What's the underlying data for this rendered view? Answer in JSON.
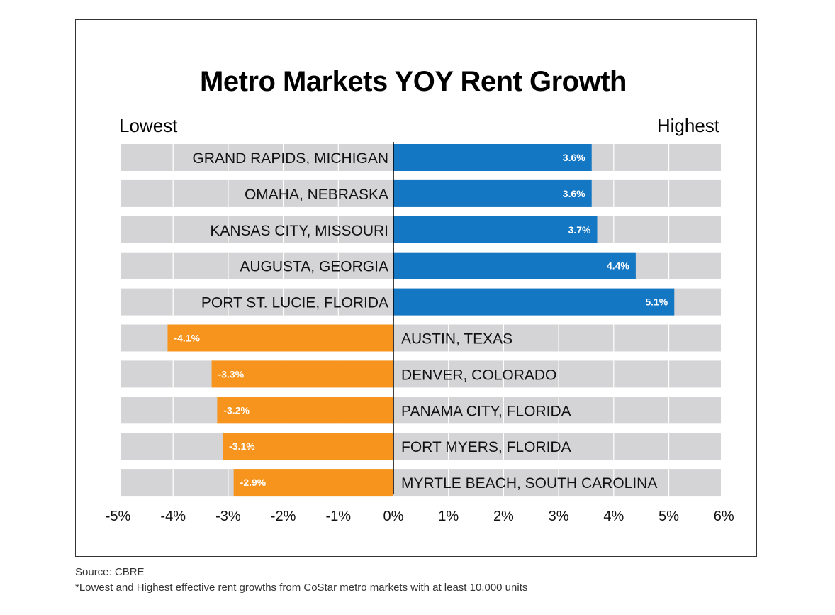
{
  "chart_data": {
    "type": "bar",
    "orientation": "horizontal",
    "title": "Metro Markets YOY Rent Growth",
    "left_label": "Lowest",
    "right_label": "Highest",
    "categories": [
      "GRAND RAPIDS, MICHIGAN",
      "OMAHA, NEBRASKA",
      "KANSAS CITY, MISSOURI",
      "AUGUSTA, GEORGIA",
      "PORT ST. LUCIE, FLORIDA",
      "AUSTIN, TEXAS",
      "DENVER, COLORADO",
      "PANAMA CITY, FLORIDA",
      "FORT MYERS, FLORIDA",
      "MYRTLE BEACH, SOUTH CAROLINA"
    ],
    "values": [
      3.6,
      3.6,
      3.7,
      4.4,
      5.1,
      -4.1,
      -3.3,
      -3.2,
      -3.1,
      -2.9
    ],
    "value_labels": [
      "3.6%",
      "3.6%",
      "3.7%",
      "4.4%",
      "5.1%",
      "-4.1%",
      "-3.3%",
      "-3.2%",
      "-3.1%",
      "-2.9%"
    ],
    "xlim": [
      -5,
      6
    ],
    "xticks": [
      "-5%",
      "-4%",
      "-3%",
      "-2%",
      "-1%",
      "0%",
      "1%",
      "2%",
      "3%",
      "4%",
      "5%",
      "6%"
    ],
    "xlabel": "",
    "ylabel": "",
    "colors": {
      "positive": "#1477c4",
      "negative": "#f7941d",
      "track": "#d4d4d6",
      "grid": "#ffffff",
      "axis": "#000000"
    }
  },
  "footer": {
    "source": "Source: CBRE",
    "footnote": "*Lowest and Highest effective rent growths from CoStar metro markets with at least 10,000 units"
  }
}
